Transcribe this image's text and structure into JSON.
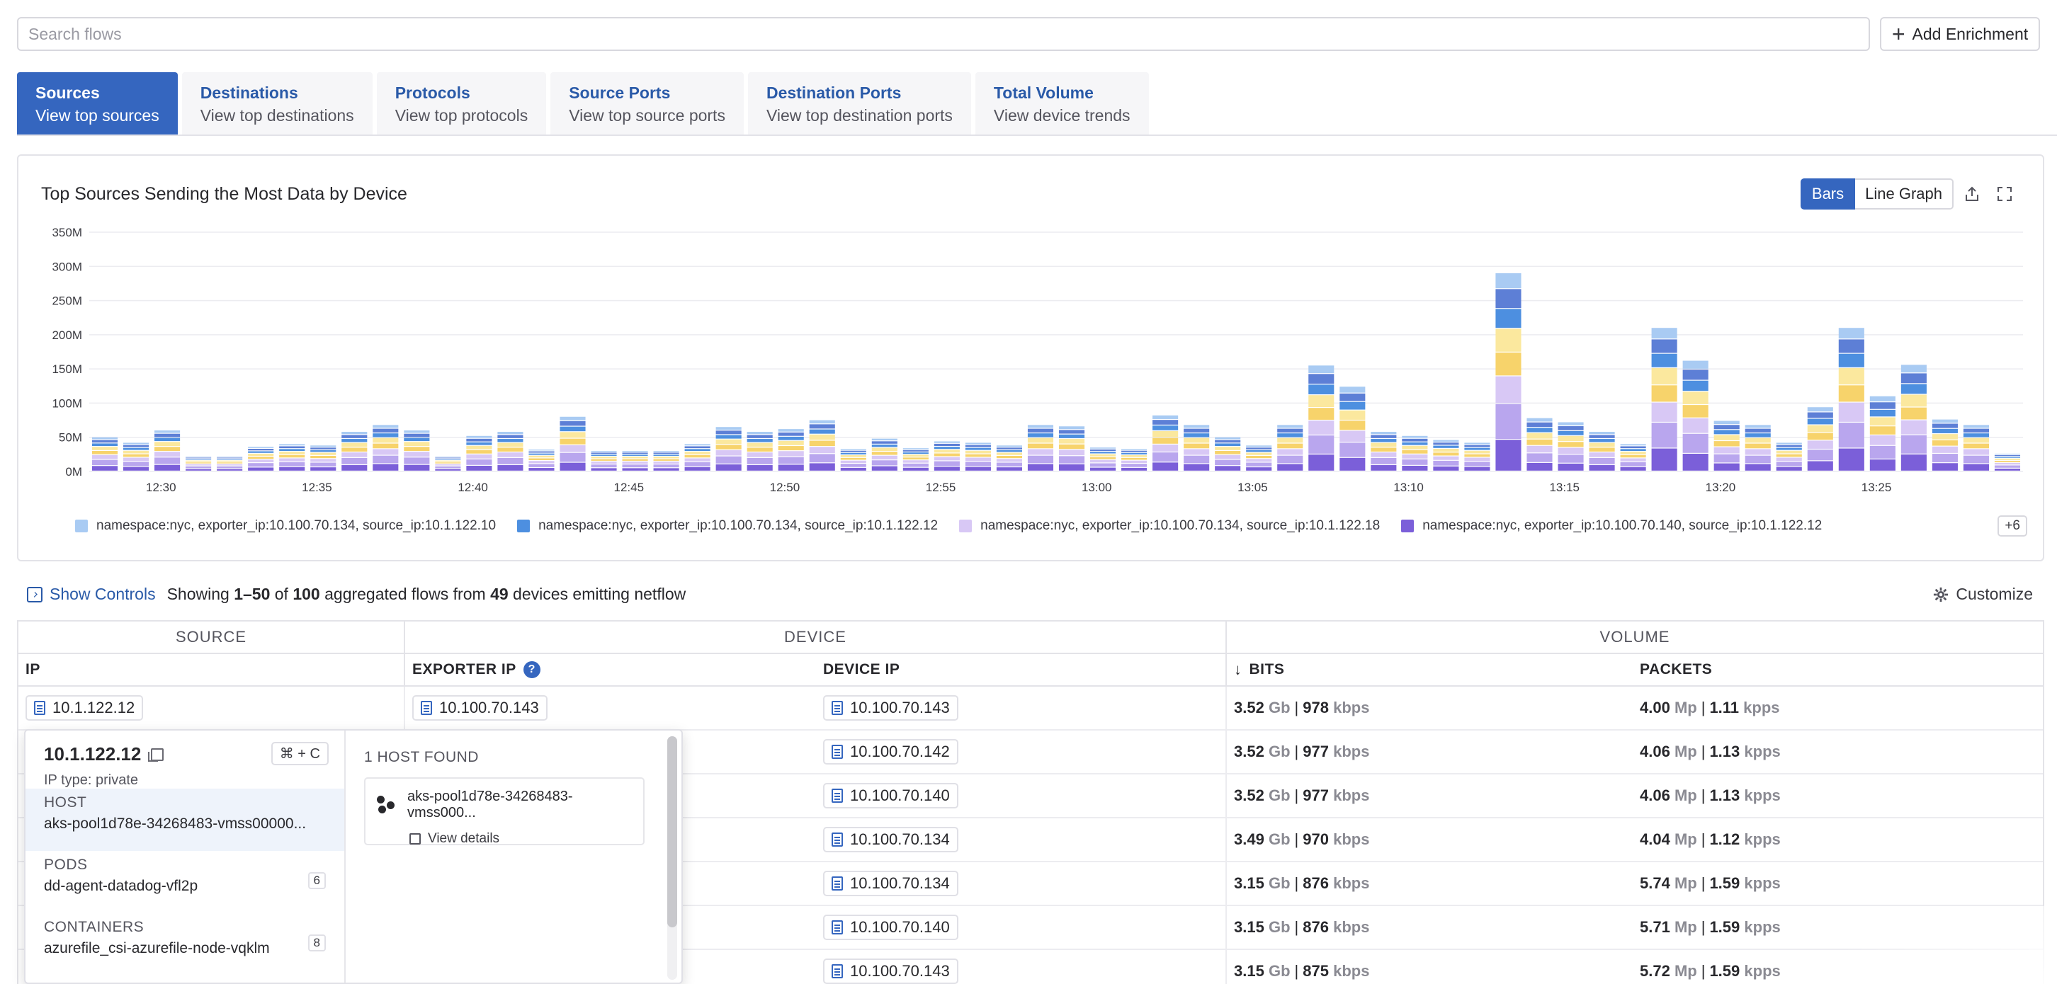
{
  "search": {
    "placeholder": "Search flows"
  },
  "add_enrichment": {
    "label": "Add Enrichment"
  },
  "tabs": [
    {
      "title": "Sources",
      "subtitle": "View top sources"
    },
    {
      "title": "Destinations",
      "subtitle": "View top destinations"
    },
    {
      "title": "Protocols",
      "subtitle": "View top protocols"
    },
    {
      "title": "Source Ports",
      "subtitle": "View top source ports"
    },
    {
      "title": "Destination Ports",
      "subtitle": "View top destination ports"
    },
    {
      "title": "Total Volume",
      "subtitle": "View device trends"
    }
  ],
  "chart": {
    "title": "Top Sources Sending the Most Data by Device",
    "bars_label": "Bars",
    "line_label": "Line Graph",
    "more_label": "+6"
  },
  "chart_data": {
    "type": "bar",
    "stacked": true,
    "yticks": [
      "0M",
      "50M",
      "100M",
      "150M",
      "200M",
      "250M",
      "300M",
      "350M"
    ],
    "ylim": [
      0,
      350
    ],
    "xticks": [
      "12:30",
      "12:35",
      "12:40",
      "12:45",
      "12:50",
      "12:55",
      "13:00",
      "13:05",
      "13:10",
      "13:15",
      "13:20",
      "13:25"
    ],
    "totals": [
      50,
      42,
      60,
      22,
      22,
      36,
      40,
      38,
      58,
      68,
      60,
      22,
      52,
      58,
      32,
      80,
      30,
      30,
      30,
      40,
      65,
      58,
      62,
      75,
      33,
      48,
      34,
      44,
      42,
      38,
      68,
      66,
      35,
      33,
      82,
      68,
      50,
      38,
      68,
      155,
      124,
      58,
      52,
      46,
      42,
      290,
      78,
      72,
      58,
      40,
      210,
      162,
      74,
      68,
      42,
      94,
      210,
      110,
      156,
      76,
      68,
      26
    ],
    "series": [
      {
        "name": "namespace:nyc, exporter_ip:10.100.70.134, source_ip:10.1.122.10",
        "color": "#a9cbf3"
      },
      {
        "name": "namespace:nyc, exporter_ip:10.100.70.134, source_ip:10.1.122.12",
        "color": "#4d8fe0"
      },
      {
        "name": "namespace:nyc, exporter_ip:10.100.70.134, source_ip:10.1.122.18",
        "color": "#d8c8f5"
      },
      {
        "name": "namespace:nyc, exporter_ip:10.100.70.140, source_ip:10.1.122.12",
        "color": "#7b5fd9"
      }
    ],
    "extra_colors": [
      "#f7d36b",
      "#fbe89e",
      "#5d7fd6",
      "#b9a6ee"
    ]
  },
  "controls": {
    "show_controls": "Show Controls",
    "showing": "Showing ",
    "range": "1–50",
    "of": " of ",
    "total": "100",
    "mid": " aggregated flows from ",
    "devices": "49",
    "tail": " devices emitting netflow",
    "customize": "Customize"
  },
  "table": {
    "groups": {
      "source": "SOURCE",
      "device": "DEVICE",
      "volume": "VOLUME"
    },
    "columns": {
      "ip": "IP",
      "exporter_ip": "EXPORTER IP",
      "device_ip": "DEVICE IP",
      "bits": "BITS",
      "packets": "PACKETS"
    },
    "rows": [
      {
        "ip": "10.1.122.12",
        "exporter_ip": "10.100.70.143",
        "device_ip": "10.100.70.143",
        "bits": "3.52",
        "bits_rate": "978",
        "packets": "4.00",
        "packets_rate": "1.11"
      },
      {
        "ip": "",
        "exporter_ip": "",
        "device_ip": "10.100.70.142",
        "bits": "3.52",
        "bits_rate": "977",
        "packets": "4.06",
        "packets_rate": "1.13"
      },
      {
        "ip": "",
        "exporter_ip": "",
        "device_ip": "10.100.70.140",
        "bits": "3.52",
        "bits_rate": "977",
        "packets": "4.06",
        "packets_rate": "1.13"
      },
      {
        "ip": "",
        "exporter_ip": "",
        "device_ip": "10.100.70.134",
        "bits": "3.49",
        "bits_rate": "970",
        "packets": "4.04",
        "packets_rate": "1.12"
      },
      {
        "ip": "",
        "exporter_ip": "",
        "device_ip": "10.100.70.134",
        "bits": "3.15",
        "bits_rate": "876",
        "packets": "5.74",
        "packets_rate": "1.59"
      },
      {
        "ip": "",
        "exporter_ip": "",
        "device_ip": "10.100.70.140",
        "bits": "3.15",
        "bits_rate": "876",
        "packets": "5.71",
        "packets_rate": "1.59"
      },
      {
        "ip": "",
        "exporter_ip": "",
        "device_ip": "10.100.70.143",
        "bits": "3.15",
        "bits_rate": "875",
        "packets": "5.72",
        "packets_rate": "1.59"
      }
    ],
    "units": {
      "bits": "Gb",
      "bits_rate": "kbps",
      "packets": "Mp",
      "packets_rate": "kpps"
    }
  },
  "popover": {
    "ip": "10.1.122.12",
    "shortcut": "⌘ + C",
    "ip_type": "IP type: private",
    "items": [
      {
        "label": "HOST",
        "value": "aks-pool1d78e-34268483-vmss00000...",
        "count": ""
      },
      {
        "label": "PODS",
        "value": "dd-agent-datadog-vfl2p",
        "count": "6"
      },
      {
        "label": "CONTAINERS",
        "value": "azurefile_csi-azurefile-node-vqklm",
        "count": "8"
      }
    ],
    "found": "1 HOST FOUND",
    "host_name": "aks-pool1d78e-34268483-vmss000...",
    "view_details": "View details"
  }
}
